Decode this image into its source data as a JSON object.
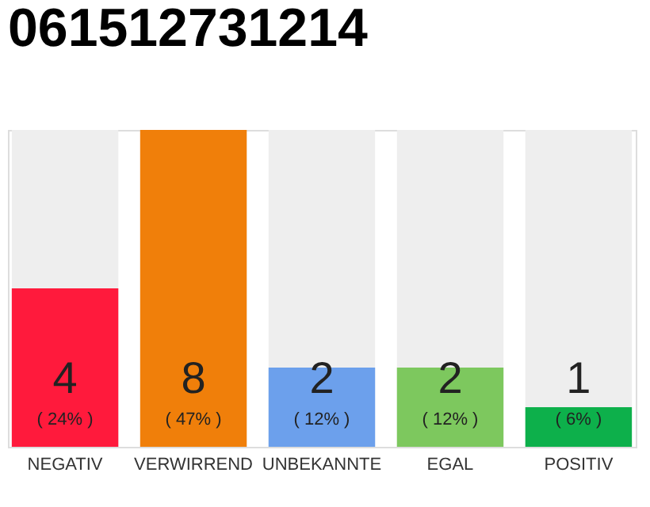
{
  "chart_data": {
    "type": "bar",
    "title": "061512731214",
    "categories": [
      "NEGATIV",
      "VERWIRREND",
      "UNBEKANNTE",
      "EGAL",
      "POSITIV"
    ],
    "values": [
      4,
      8,
      2,
      2,
      1
    ],
    "colors": [
      "#ff1a3c",
      "#f07f0a",
      "#6ca0ec",
      "#7dc85e",
      "#0db04b"
    ],
    "data_labels": true,
    "annotations": [
      "( 24% )",
      "( 47% )",
      "( 12% )",
      "( 12% )",
      "( 6% )"
    ],
    "tick_labels": "x"
  }
}
